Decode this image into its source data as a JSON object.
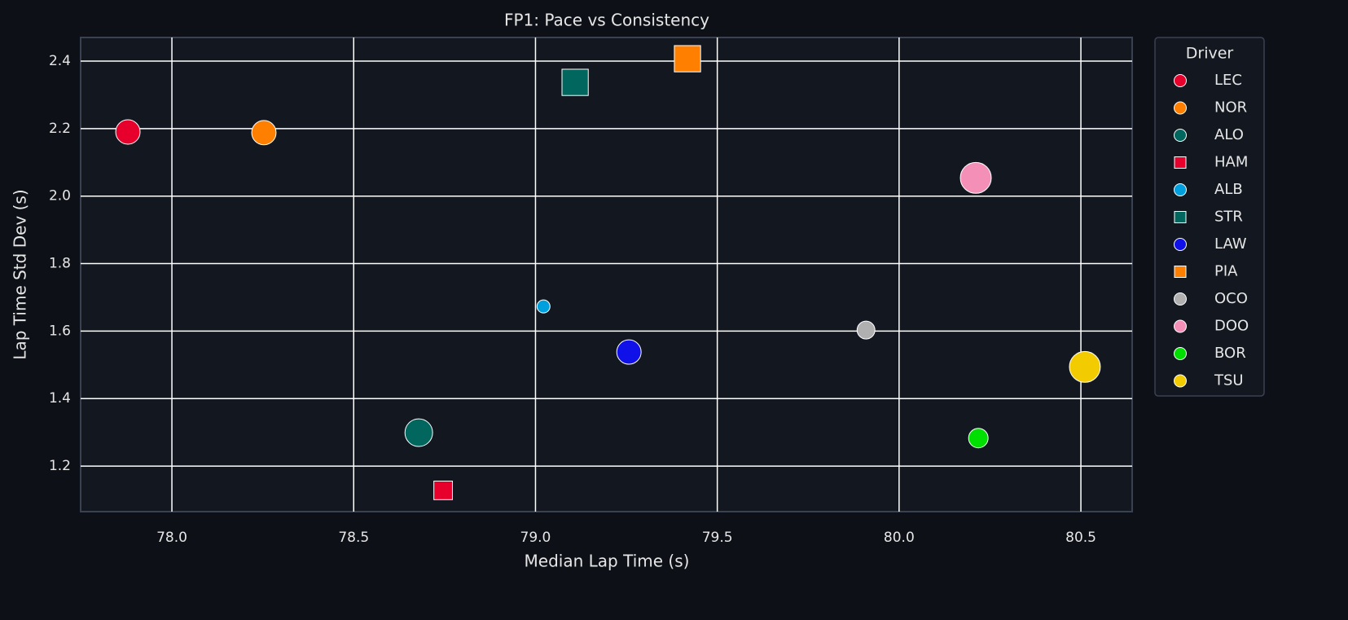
{
  "chart_data": {
    "type": "scatter",
    "title": "FP1: Pace vs Consistency",
    "x_label": "Median Lap Time (s)",
    "y_label": "Lap Time Std Dev (s)",
    "xlim": [
      77.749,
      80.641
    ],
    "ylim": [
      1.065,
      2.47
    ],
    "xticks": [
      {
        "value": 78,
        "label": "78.0"
      },
      78.5,
      {
        "value": 79,
        "label": "79.0"
      },
      79.5,
      {
        "value": 80,
        "label": "80.0"
      },
      80.5
    ],
    "yticks": [
      1.2,
      1.4,
      1.6,
      1.8,
      {
        "value": 2,
        "label": "2.0"
      },
      2.2,
      2.4
    ],
    "grid": true,
    "legend_title": "Driver",
    "legend_position": "outside-right",
    "series": [
      {
        "name": "LEC",
        "color": "#e8002d",
        "marker": "circle",
        "x": [
          77.879
        ],
        "values": [
          2.19
        ],
        "sizes": [
          56
        ]
      },
      {
        "name": "NOR",
        "color": "#ff8000",
        "marker": "circle",
        "x": [
          78.253
        ],
        "values": [
          2.188
        ],
        "sizes": [
          56
        ]
      },
      {
        "name": "ALO",
        "color": "#00665e",
        "marker": "circle",
        "x": [
          78.679
        ],
        "values": [
          1.299
        ],
        "sizes": [
          72
        ]
      },
      {
        "name": "HAM",
        "color": "#e8002d",
        "marker": "square",
        "x": [
          78.746
        ],
        "values": [
          1.128
        ],
        "sizes": [
          36
        ]
      },
      {
        "name": "ALB",
        "color": "#00a0de",
        "marker": "circle",
        "x": [
          79.022
        ],
        "values": [
          1.673
        ],
        "sizes": [
          16
        ]
      },
      {
        "name": "STR",
        "color": "#00665e",
        "marker": "square",
        "x": [
          79.109
        ],
        "values": [
          2.337
        ],
        "sizes": [
          72
        ]
      },
      {
        "name": "LAW",
        "color": "#1010e8",
        "marker": "circle",
        "x": [
          79.257
        ],
        "values": [
          1.538
        ],
        "sizes": [
          56
        ]
      },
      {
        "name": "PIA",
        "color": "#ff8000",
        "marker": "square",
        "x": [
          79.418
        ],
        "values": [
          2.407
        ],
        "sizes": [
          72
        ]
      },
      {
        "name": "OCO",
        "color": "#b0b0b0",
        "marker": "circle",
        "x": [
          79.909
        ],
        "values": [
          1.603
        ],
        "sizes": [
          30
        ]
      },
      {
        "name": "DOO",
        "color": "#f48fb8",
        "marker": "circle",
        "x": [
          80.211
        ],
        "values": [
          2.054
        ],
        "sizes": [
          90
        ]
      },
      {
        "name": "BOR",
        "color": "#00e000",
        "marker": "circle",
        "x": [
          80.218
        ],
        "values": [
          1.283
        ],
        "sizes": [
          36
        ]
      },
      {
        "name": "TSU",
        "color": "#f2cc00",
        "marker": "circle",
        "x": [
          80.511
        ],
        "values": [
          1.494
        ],
        "sizes": [
          90
        ]
      }
    ]
  }
}
